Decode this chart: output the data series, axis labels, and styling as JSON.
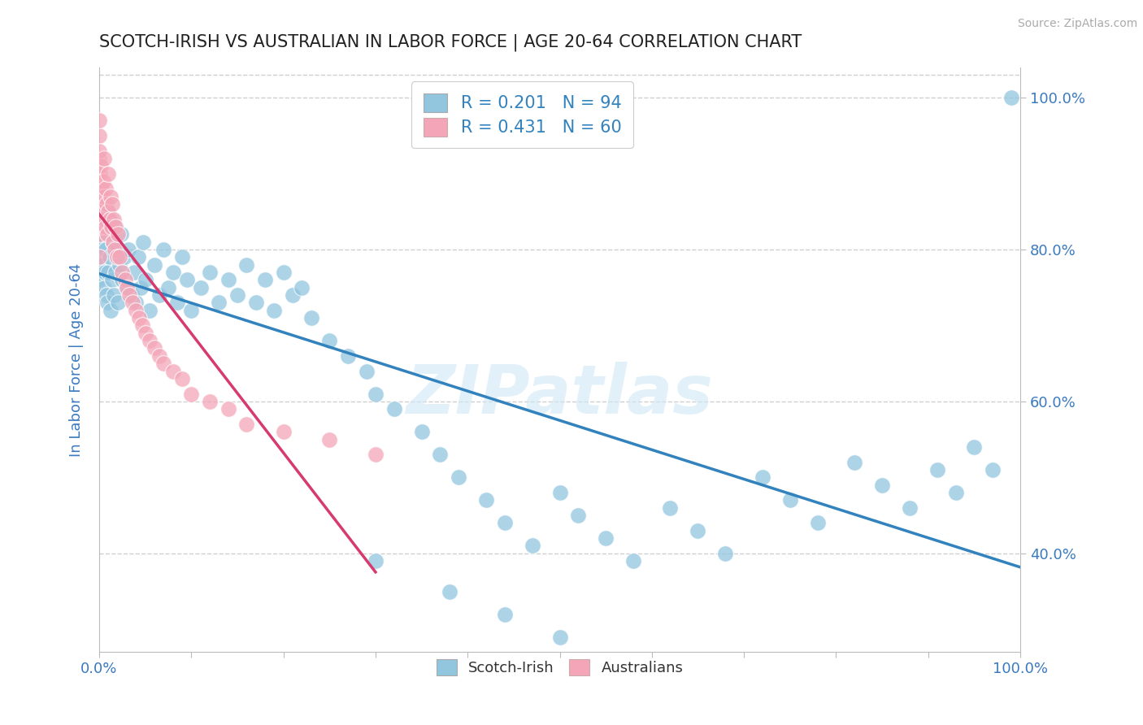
{
  "title": "SCOTCH-IRISH VS AUSTRALIAN IN LABOR FORCE | AGE 20-64 CORRELATION CHART",
  "ylabel": "In Labor Force | Age 20-64",
  "source": "Source: ZipAtlas.com",
  "blue_color": "#92c5de",
  "pink_color": "#f4a6b8",
  "blue_line_color": "#3182bd",
  "pink_line_color": "#d63a6e",
  "R_blue": 0.201,
  "N_blue": 94,
  "R_pink": 0.431,
  "N_pink": 60,
  "watermark": "ZIPatlas",
  "legend_label_blue": "Scotch-Irish",
  "legend_label_pink": "Australians",
  "background_color": "#ffffff",
  "grid_color": "#d0d0d0",
  "title_color": "#222222",
  "axis_label_color": "#3a7abf",
  "tick_label_color": "#3a7abf",
  "ylim_low": 0.27,
  "ylim_high": 1.04,
  "xlim_low": 0.0,
  "xlim_high": 1.0,
  "scotch_irish_x": [
    0.0,
    0.0,
    0.0,
    0.002,
    0.003,
    0.004,
    0.005,
    0.005,
    0.006,
    0.007,
    0.008,
    0.008,
    0.009,
    0.01,
    0.01,
    0.011,
    0.012,
    0.013,
    0.014,
    0.015,
    0.016,
    0.017,
    0.018,
    0.019,
    0.02,
    0.022,
    0.024,
    0.025,
    0.027,
    0.03,
    0.032,
    0.035,
    0.038,
    0.04,
    0.042,
    0.045,
    0.048,
    0.05,
    0.055,
    0.06,
    0.065,
    0.07,
    0.075,
    0.08,
    0.085,
    0.09,
    0.095,
    0.1,
    0.11,
    0.12,
    0.13,
    0.14,
    0.15,
    0.16,
    0.17,
    0.18,
    0.19,
    0.2,
    0.21,
    0.22,
    0.23,
    0.25,
    0.27,
    0.29,
    0.3,
    0.32,
    0.35,
    0.37,
    0.39,
    0.42,
    0.44,
    0.47,
    0.5,
    0.52,
    0.55,
    0.58,
    0.62,
    0.65,
    0.68,
    0.72,
    0.75,
    0.78,
    0.82,
    0.85,
    0.88,
    0.91,
    0.93,
    0.95,
    0.97,
    0.99,
    0.3,
    0.38,
    0.44,
    0.5
  ],
  "scotch_irish_y": [
    0.79,
    0.82,
    0.76,
    0.84,
    0.78,
    0.81,
    0.75,
    0.83,
    0.77,
    0.8,
    0.74,
    0.86,
    0.73,
    0.77,
    0.85,
    0.79,
    0.72,
    0.84,
    0.76,
    0.81,
    0.74,
    0.83,
    0.77,
    0.8,
    0.73,
    0.78,
    0.82,
    0.76,
    0.79,
    0.75,
    0.8,
    0.74,
    0.77,
    0.73,
    0.79,
    0.75,
    0.81,
    0.76,
    0.72,
    0.78,
    0.74,
    0.8,
    0.75,
    0.77,
    0.73,
    0.79,
    0.76,
    0.72,
    0.75,
    0.77,
    0.73,
    0.76,
    0.74,
    0.78,
    0.73,
    0.76,
    0.72,
    0.77,
    0.74,
    0.75,
    0.71,
    0.68,
    0.66,
    0.64,
    0.61,
    0.59,
    0.56,
    0.53,
    0.5,
    0.47,
    0.44,
    0.41,
    0.48,
    0.45,
    0.42,
    0.39,
    0.46,
    0.43,
    0.4,
    0.5,
    0.47,
    0.44,
    0.52,
    0.49,
    0.46,
    0.51,
    0.48,
    0.54,
    0.51,
    1.0,
    0.39,
    0.35,
    0.32,
    0.29
  ],
  "australians_x": [
    0.0,
    0.0,
    0.0,
    0.0,
    0.0,
    0.0,
    0.0,
    0.0,
    0.0,
    0.0,
    0.001,
    0.001,
    0.002,
    0.002,
    0.003,
    0.003,
    0.004,
    0.004,
    0.005,
    0.005,
    0.006,
    0.007,
    0.007,
    0.008,
    0.009,
    0.01,
    0.01,
    0.011,
    0.012,
    0.013,
    0.014,
    0.015,
    0.016,
    0.017,
    0.018,
    0.019,
    0.02,
    0.022,
    0.025,
    0.028,
    0.03,
    0.033,
    0.036,
    0.04,
    0.043,
    0.047,
    0.05,
    0.055,
    0.06,
    0.065,
    0.07,
    0.08,
    0.09,
    0.1,
    0.12,
    0.14,
    0.16,
    0.2,
    0.25,
    0.3
  ],
  "australians_y": [
    0.92,
    0.88,
    0.85,
    0.9,
    0.95,
    0.82,
    0.87,
    0.93,
    0.79,
    0.97,
    0.84,
    0.9,
    0.86,
    0.91,
    0.88,
    0.83,
    0.89,
    0.85,
    0.87,
    0.92,
    0.84,
    0.88,
    0.83,
    0.86,
    0.82,
    0.85,
    0.9,
    0.84,
    0.87,
    0.83,
    0.86,
    0.81,
    0.84,
    0.8,
    0.83,
    0.79,
    0.82,
    0.79,
    0.77,
    0.76,
    0.75,
    0.74,
    0.73,
    0.72,
    0.71,
    0.7,
    0.69,
    0.68,
    0.67,
    0.66,
    0.65,
    0.64,
    0.63,
    0.61,
    0.6,
    0.59,
    0.57,
    0.56,
    0.55,
    0.53
  ]
}
